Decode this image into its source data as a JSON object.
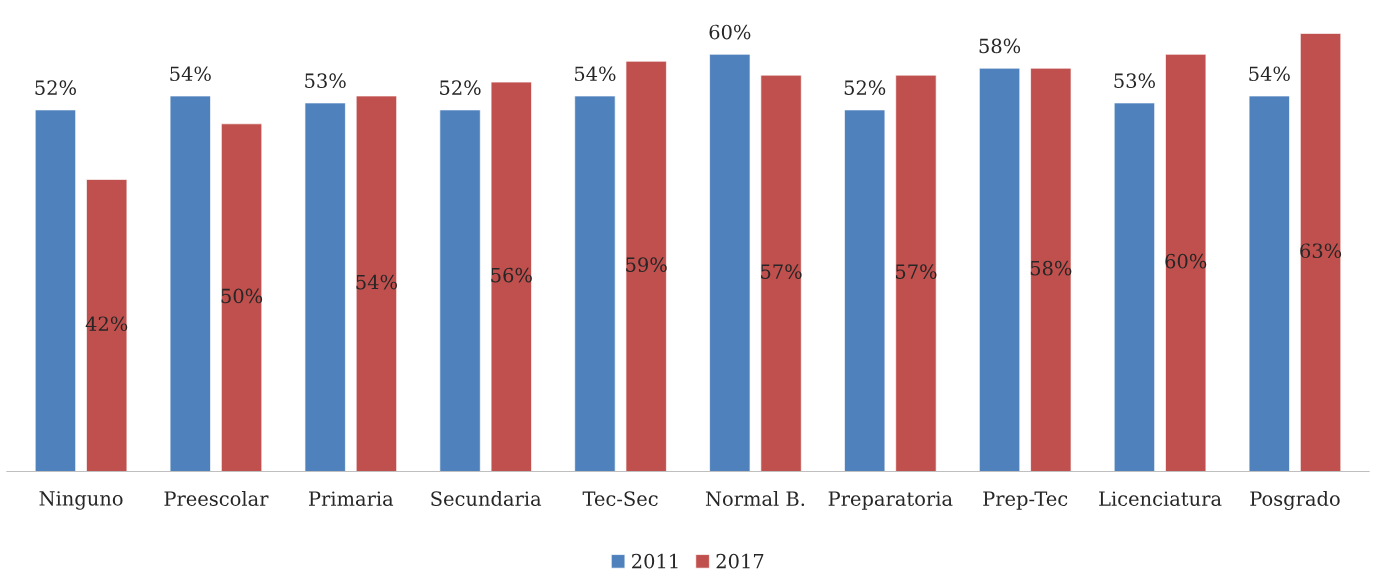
{
  "chart_data": {
    "type": "bar",
    "categories": [
      "Ninguno",
      "Preescolar",
      "Primaria",
      "Secundaria",
      "Tec-Sec",
      "Normal B.",
      "Preparatoria",
      "Prep-Tec",
      "Licenciatura",
      "Posgrado"
    ],
    "series": [
      {
        "name": "2011",
        "color": "#4f81bd",
        "values": [
          52,
          54,
          53,
          52,
          54,
          60,
          52,
          58,
          53,
          54
        ],
        "value_labels": [
          "52%",
          "54%",
          "53%",
          "52%",
          "54%",
          "60%",
          "52%",
          "58%",
          "53%",
          "54%"
        ]
      },
      {
        "name": "2017",
        "color": "#c0504d",
        "values": [
          42,
          50,
          54,
          56,
          59,
          57,
          57,
          58,
          60,
          63
        ],
        "value_labels": [
          "42%",
          "50%",
          "54%",
          "56%",
          "59%",
          "57%",
          "57%",
          "58%",
          "60%",
          "63%"
        ]
      }
    ],
    "grid": false,
    "legend": "bottom"
  }
}
